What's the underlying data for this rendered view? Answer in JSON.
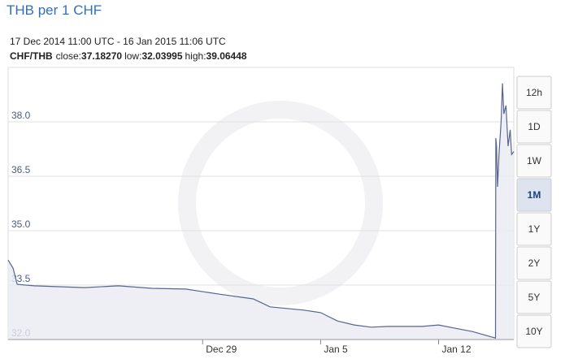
{
  "chart_data": {
    "type": "area",
    "title": "THB per 1 CHF",
    "subtitle": "17 Dec 2014 11:00 UTC - 16 Jan 2015 11:06 UTC",
    "stats": {
      "pair": "CHF/THB",
      "close_label": "close:",
      "close": "37.18270",
      "low_label": "low:",
      "low": "32.03995",
      "high_label": "high:",
      "high": "39.06448"
    },
    "x": [
      "2014-12-17 11:00",
      "2014-12-17 18:00",
      "2014-12-18 00:00",
      "2014-12-19 00:00",
      "2014-12-22 00:00",
      "2014-12-24 00:00",
      "2014-12-26 00:00",
      "2014-12-28 00:00",
      "2014-12-30 00:00",
      "2015-01-01 00:00",
      "2015-01-02 00:00",
      "2015-01-04 00:00",
      "2015-01-05 00:00",
      "2015-01-06 00:00",
      "2015-01-07 00:00",
      "2015-01-08 00:00",
      "2015-01-09 00:00",
      "2015-01-11 00:00",
      "2015-01-12 00:00",
      "2015-01-13 00:00",
      "2015-01-14 00:00",
      "2015-01-15 09:00",
      "2015-01-15 09:30",
      "2015-01-15 10:30",
      "2015-01-15 12:00",
      "2015-01-15 14:00",
      "2015-01-15 17:00",
      "2015-01-15 19:00",
      "2015-01-15 21:00",
      "2015-01-16 00:00",
      "2015-01-16 03:00",
      "2015-01-16 06:00",
      "2015-01-16 08:00",
      "2015-01-16 11:06"
    ],
    "series": [
      {
        "name": "CHF/THB",
        "color": "#56658f",
        "values": [
          34.19,
          33.97,
          33.52,
          33.48,
          33.43,
          33.48,
          33.41,
          33.39,
          33.25,
          33.12,
          32.9,
          32.81,
          32.74,
          32.51,
          32.4,
          32.34,
          32.36,
          32.36,
          32.4,
          32.31,
          32.22,
          32.04,
          37.55,
          37.33,
          36.21,
          37.1,
          38.0,
          39.06,
          38.22,
          38.45,
          37.33,
          37.78,
          37.1,
          37.18
        ]
      }
    ],
    "xlim": [
      "2014-12-17 11:00",
      "2015-01-16 11:06"
    ],
    "xticks": [
      {
        "value": "2014-12-29 00:00",
        "label": "Dec 29"
      },
      {
        "value": "2015-01-05 00:00",
        "label": "Jan 5"
      },
      {
        "value": "2015-01-12 00:00",
        "label": "Jan 12"
      }
    ],
    "ylim": [
      32.0,
      39.5
    ],
    "yticks": [
      {
        "value": 32.0,
        "label": "32.0"
      },
      {
        "value": 33.5,
        "label": "33.5"
      },
      {
        "value": 35.0,
        "label": "35.0"
      },
      {
        "value": 36.5,
        "label": "36.5"
      },
      {
        "value": 38.0,
        "label": "38.0"
      }
    ],
    "grid": true,
    "ranges": [
      "12h",
      "1D",
      "1W",
      "1M",
      "1Y",
      "2Y",
      "5Y",
      "10Y"
    ],
    "selected_range": 3
  }
}
